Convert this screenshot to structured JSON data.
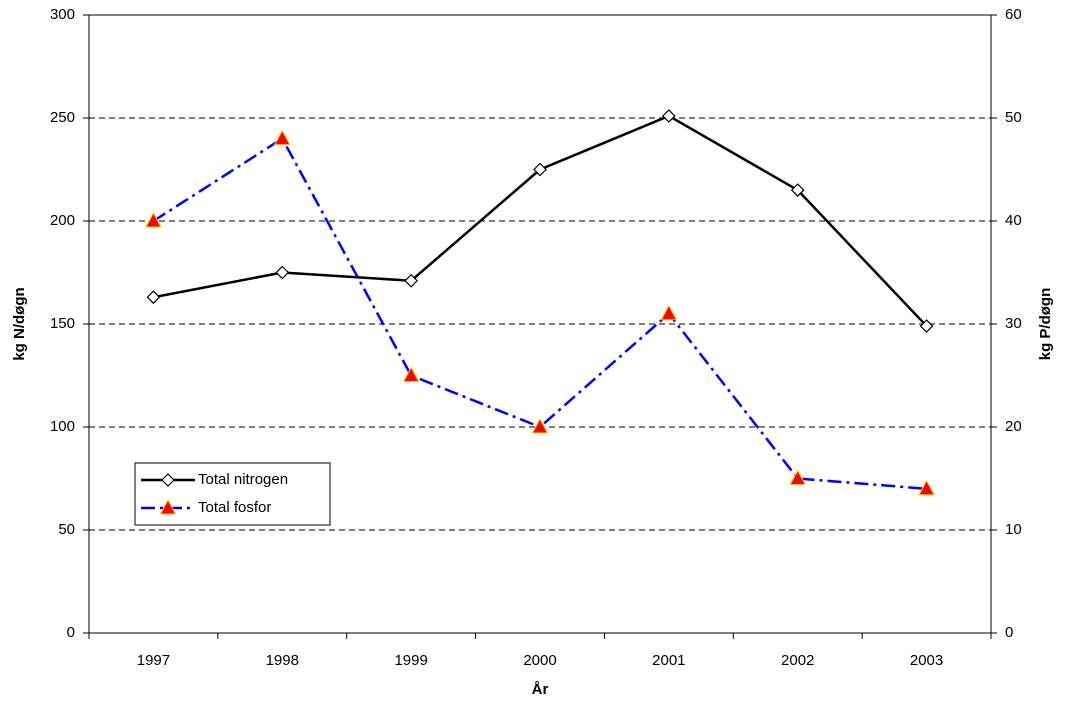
{
  "chart_data": {
    "type": "line",
    "x_label": "År",
    "y_label": "kg N/døgn",
    "y2_label": "kg P/døgn",
    "categories": [
      "1997",
      "1998",
      "1999",
      "2000",
      "2001",
      "2002",
      "2003"
    ],
    "series": [
      {
        "name": "Total nitrogen",
        "color": "#000000",
        "marker": "diamond",
        "dash": "solid",
        "values": [
          163,
          175,
          171,
          225,
          251,
          215,
          149
        ]
      },
      {
        "name": "Total fosfor",
        "color": "#0000ff",
        "marker": "triangle",
        "dash": "dashdot",
        "axis": "y2",
        "values": [
          40,
          48,
          25,
          20,
          31,
          15,
          14
        ]
      }
    ],
    "ylim": [
      0,
      300
    ],
    "yticks": [
      0,
      50,
      100,
      150,
      200,
      250,
      300
    ],
    "y2lim": [
      0,
      60
    ],
    "y2ticks": [
      0,
      10,
      20,
      30,
      40,
      50,
      60
    ],
    "grid": true,
    "legend": "lower left"
  }
}
